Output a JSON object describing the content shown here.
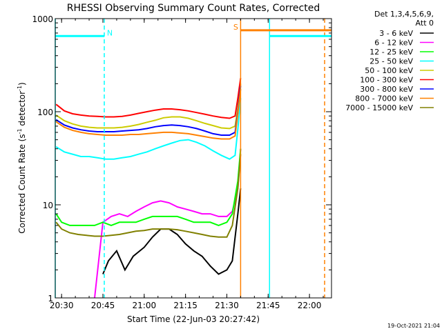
{
  "chart_data": {
    "type": "line",
    "title": "RHESSI Observing Summary Count Rates, Corrected",
    "xlabel": "Start Time (22-Jun-03 20:27:42)",
    "ylabel": "Corrected Count Rate (s⁻¹ detector⁻¹)",
    "ylabel_main": "Corrected Count Rate (s",
    "ylabel_sup1": "-1",
    "ylabel_mid": " detector",
    "ylabel_sup2": "-1",
    "ylabel_end": ")",
    "yscale": "log",
    "ylim": [
      1,
      1000
    ],
    "xlim": [
      "20:27:42",
      "22:08"
    ],
    "x_ticks": [
      "20:30",
      "20:45",
      "21:00",
      "21:15",
      "21:30",
      "21:45",
      "22:00"
    ],
    "y_ticks": [
      "1",
      "10",
      "100",
      "1000"
    ],
    "legend_title": [
      "Det 1,3,4,5,6,9,",
      "Att 0"
    ],
    "legend_position": "right",
    "grid": false,
    "timestamp": "19-Oct-2021 21:04",
    "series": [
      {
        "name": "3 - 6 keV",
        "color": "#000000",
        "x": [
          "20:45",
          "20:47",
          "20:50",
          "20:53",
          "20:56",
          "21:00",
          "21:03",
          "21:06",
          "21:09",
          "21:12",
          "21:15",
          "21:18",
          "21:21",
          "21:24",
          "21:27",
          "21:30",
          "21:32",
          "21:34",
          "21:35"
        ],
        "y": [
          1.8,
          2.5,
          3.2,
          2.0,
          2.8,
          3.5,
          4.5,
          5.5,
          5.5,
          4.8,
          3.8,
          3.2,
          2.8,
          2.2,
          1.8,
          2.0,
          2.5,
          8,
          15
        ]
      },
      {
        "name": "6 - 12 keV",
        "color": "#ff00ff",
        "x": [
          "20:42",
          "20:45",
          "20:48",
          "20:51",
          "20:54",
          "20:57",
          "21:00",
          "21:03",
          "21:06",
          "21:09",
          "21:12",
          "21:15",
          "21:18",
          "21:21",
          "21:24",
          "21:27",
          "21:30",
          "21:32",
          "21:34",
          "21:35"
        ],
        "y": [
          1.0,
          6.5,
          7.5,
          8.0,
          7.5,
          8.5,
          9.5,
          10.5,
          11.0,
          10.5,
          9.5,
          9.0,
          8.5,
          8.0,
          8.0,
          7.5,
          7.5,
          8.5,
          15,
          40
        ]
      },
      {
        "name": "12 - 25 keV",
        "color": "#00ff00",
        "x": [
          "20:28",
          "20:30",
          "20:33",
          "20:36",
          "20:39",
          "20:42",
          "20:45",
          "20:48",
          "20:51",
          "20:54",
          "20:57",
          "21:00",
          "21:03",
          "21:06",
          "21:09",
          "21:12",
          "21:15",
          "21:18",
          "21:21",
          "21:24",
          "21:27",
          "21:30",
          "21:32",
          "21:34",
          "21:35"
        ],
        "y": [
          8,
          6.5,
          6.0,
          6.0,
          6.0,
          6.0,
          6.5,
          6.0,
          6.5,
          6.5,
          6.5,
          7.0,
          7.5,
          7.5,
          7.5,
          7.5,
          7.0,
          6.5,
          6.5,
          6.5,
          6.0,
          6.5,
          8,
          18,
          40
        ]
      },
      {
        "name": "25 - 50 keV",
        "color": "#00ffff",
        "x": [
          "20:28",
          "20:31",
          "20:34",
          "20:37",
          "20:40",
          "20:43",
          "20:46",
          "20:49",
          "20:52",
          "20:55",
          "20:58",
          "21:01",
          "21:04",
          "21:07",
          "21:10",
          "21:13",
          "21:16",
          "21:19",
          "21:22",
          "21:25",
          "21:28",
          "21:31",
          "21:33",
          "21:34",
          "21:35"
        ],
        "y": [
          42,
          37,
          35,
          33,
          33,
          32,
          31,
          31,
          32,
          33,
          35,
          37,
          40,
          43,
          46,
          49,
          50,
          47,
          43,
          38,
          34,
          31,
          34,
          65,
          140
        ]
      },
      {
        "name": "50 - 100 keV",
        "color": "#cccc00",
        "x": [
          "20:28",
          "20:31",
          "20:34",
          "20:37",
          "20:40",
          "20:43",
          "20:46",
          "20:49",
          "20:52",
          "20:55",
          "20:58",
          "21:01",
          "21:04",
          "21:07",
          "21:10",
          "21:13",
          "21:16",
          "21:19",
          "21:22",
          "21:25",
          "21:28",
          "21:31",
          "21:33",
          "21:34",
          "21:35"
        ],
        "y": [
          92,
          80,
          74,
          70,
          68,
          67,
          67,
          67,
          68,
          70,
          73,
          77,
          81,
          86,
          88,
          88,
          85,
          80,
          75,
          71,
          67,
          66,
          70,
          110,
          200
        ]
      },
      {
        "name": "100 - 300 keV",
        "color": "#ff0000",
        "x": [
          "20:28",
          "20:31",
          "20:34",
          "20:37",
          "20:40",
          "20:43",
          "20:46",
          "20:49",
          "20:52",
          "20:55",
          "20:58",
          "21:01",
          "21:04",
          "21:07",
          "21:10",
          "21:13",
          "21:16",
          "21:19",
          "21:22",
          "21:25",
          "21:28",
          "21:31",
          "21:33",
          "21:34",
          "21:35"
        ],
        "y": [
          120,
          102,
          95,
          92,
          90,
          89,
          88,
          88,
          89,
          92,
          96,
          100,
          104,
          107,
          107,
          105,
          102,
          98,
          94,
          90,
          87,
          85,
          90,
          140,
          230
        ]
      },
      {
        "name": "300 - 800 keV",
        "color": "#0000ff",
        "x": [
          "20:28",
          "20:31",
          "20:34",
          "20:37",
          "20:40",
          "20:43",
          "20:46",
          "20:49",
          "20:52",
          "20:55",
          "20:58",
          "21:01",
          "21:04",
          "21:07",
          "21:10",
          "21:13",
          "21:16",
          "21:19",
          "21:22",
          "21:25",
          "21:28",
          "21:31",
          "21:33",
          "21:34",
          "21:35"
        ],
        "y": [
          82,
          72,
          67,
          64,
          62,
          61,
          61,
          61,
          62,
          63,
          64,
          66,
          69,
          71,
          72,
          71,
          69,
          66,
          62,
          58,
          56,
          56,
          60,
          100,
          190
        ]
      },
      {
        "name": "800 - 7000 keV",
        "color": "#ff8000",
        "x": [
          "20:28",
          "20:31",
          "20:34",
          "20:37",
          "20:40",
          "20:43",
          "20:46",
          "20:49",
          "20:52",
          "20:55",
          "20:58",
          "21:01",
          "21:04",
          "21:07",
          "21:10",
          "21:13",
          "21:16",
          "21:19",
          "21:22",
          "21:25",
          "21:28",
          "21:31",
          "21:33",
          "21:34",
          "21:35"
        ],
        "y": [
          78,
          68,
          63,
          60,
          58,
          57,
          56,
          56,
          56,
          57,
          57,
          58,
          59,
          60,
          60,
          59,
          58,
          56,
          54,
          52,
          51,
          51,
          55,
          95,
          175
        ]
      },
      {
        "name": "7000 - 15000 keV",
        "color": "#808000",
        "x": [
          "20:28",
          "20:30",
          "20:33",
          "20:36",
          "20:39",
          "20:42",
          "20:45",
          "20:48",
          "20:51",
          "20:54",
          "20:57",
          "21:00",
          "21:03",
          "21:06",
          "21:09",
          "21:12",
          "21:15",
          "21:18",
          "21:21",
          "21:24",
          "21:27",
          "21:30",
          "21:32",
          "21:34",
          "21:35"
        ],
        "y": [
          6.5,
          5.5,
          5.0,
          4.8,
          4.7,
          4.6,
          4.6,
          4.7,
          4.8,
          5.0,
          5.2,
          5.3,
          5.5,
          5.5,
          5.5,
          5.4,
          5.2,
          5.0,
          4.8,
          4.6,
          4.5,
          4.5,
          6,
          15,
          35
        ]
      }
    ],
    "annotations": [
      {
        "label": "N",
        "color": "#00ffff",
        "x_start": "20:27:42",
        "x_end": "20:45:30",
        "y": 650,
        "type": "flag-bar"
      },
      {
        "label": "S",
        "color": "#ff8000",
        "x_start": "21:35:00",
        "x_end": "22:08",
        "y": 750,
        "type": "flag-bar"
      },
      {
        "label": "",
        "color": "#00ffff",
        "x_start": "21:45:30",
        "x_end": "22:08",
        "y": 650,
        "type": "flag-bar"
      }
    ],
    "vertical_lines": [
      {
        "x": "20:27:42",
        "color": "#00ffff",
        "style": "solid"
      },
      {
        "x": "20:45:30",
        "color": "#00ffff",
        "style": "dashed"
      },
      {
        "x": "21:35:00",
        "color": "#ff8000",
        "style": "solid"
      },
      {
        "x": "21:45:30",
        "color": "#00ffff",
        "style": "solid"
      },
      {
        "x": "22:05:30",
        "color": "#ff8000",
        "style": "dashed"
      }
    ]
  }
}
